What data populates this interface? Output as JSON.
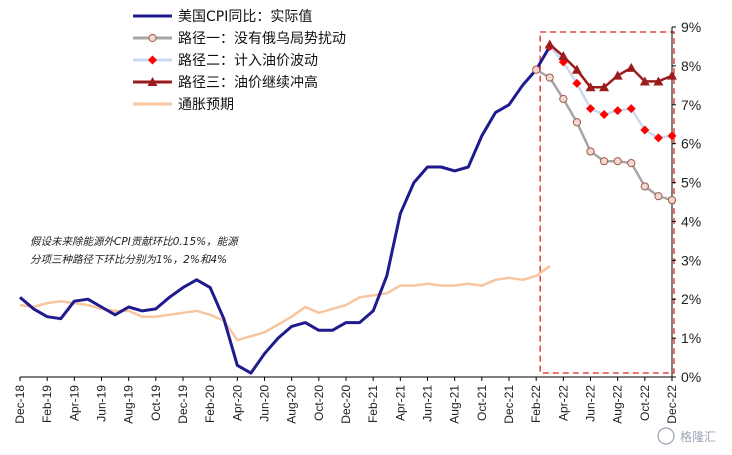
{
  "chart_data": {
    "type": "line",
    "x": [
      "Dec-18",
      "Jan-19",
      "Feb-19",
      "Mar-19",
      "Apr-19",
      "May-19",
      "Jun-19",
      "Jul-19",
      "Aug-19",
      "Sep-19",
      "Oct-19",
      "Nov-19",
      "Dec-19",
      "Jan-20",
      "Feb-20",
      "Mar-20",
      "Apr-20",
      "May-20",
      "Jun-20",
      "Jul-20",
      "Aug-20",
      "Sep-20",
      "Oct-20",
      "Nov-20",
      "Dec-20",
      "Jan-21",
      "Feb-21",
      "Mar-21",
      "Apr-21",
      "May-21",
      "Jun-21",
      "Jul-21",
      "Aug-21",
      "Sep-21",
      "Oct-21",
      "Nov-21",
      "Dec-21",
      "Jan-22",
      "Feb-22",
      "Mar-22",
      "Apr-22",
      "May-22",
      "Jun-22",
      "Jul-22",
      "Aug-22",
      "Sep-22",
      "Oct-22",
      "Nov-22",
      "Dec-22"
    ],
    "xtick_labels": [
      "Dec-18",
      "Feb-19",
      "Apr-19",
      "Jun-19",
      "Aug-19",
      "Oct-19",
      "Dec-19",
      "Feb-20",
      "Apr-20",
      "Jun-20",
      "Aug-20",
      "Oct-20",
      "Dec-20",
      "Feb-21",
      "Apr-21",
      "Jun-21",
      "Aug-21",
      "Oct-21",
      "Dec-21",
      "Feb-22",
      "Apr-22",
      "Jun-22",
      "Aug-22",
      "Oct-22",
      "Dec-22"
    ],
    "yticks": [
      "0%",
      "1%",
      "2%",
      "3%",
      "4%",
      "5%",
      "6%",
      "7%",
      "8%",
      "9%"
    ],
    "ylim": [
      0,
      9
    ],
    "series": [
      {
        "name": "美国CPI同比：实际值",
        "color": "#1f1b8f",
        "marker": "none",
        "values": [
          2.05,
          1.75,
          1.55,
          1.5,
          1.95,
          2.0,
          1.8,
          1.6,
          1.8,
          1.7,
          1.75,
          2.05,
          2.3,
          2.5,
          2.3,
          1.5,
          0.3,
          0.1,
          0.6,
          1.0,
          1.3,
          1.4,
          1.2,
          1.2,
          1.4,
          1.4,
          1.7,
          2.6,
          4.2,
          5.0,
          5.4,
          5.4,
          5.3,
          5.4,
          6.2,
          6.8,
          7.0,
          7.5,
          7.9,
          8.5,
          null,
          null,
          null,
          null,
          null,
          null,
          null,
          null,
          null
        ]
      },
      {
        "name": "路径一：没有俄乌局势扰动",
        "color": "#a6a6a6",
        "marker": "circle",
        "values": [
          null,
          null,
          null,
          null,
          null,
          null,
          null,
          null,
          null,
          null,
          null,
          null,
          null,
          null,
          null,
          null,
          null,
          null,
          null,
          null,
          null,
          null,
          null,
          null,
          null,
          null,
          null,
          null,
          null,
          null,
          null,
          null,
          null,
          null,
          null,
          null,
          null,
          null,
          7.9,
          7.7,
          7.15,
          6.55,
          5.8,
          5.55,
          5.55,
          5.5,
          4.9,
          4.65,
          4.55
        ]
      },
      {
        "name": "路径二：计入油价波动",
        "color": "#ff0000",
        "marker": "diamond",
        "values": [
          null,
          null,
          null,
          null,
          null,
          null,
          null,
          null,
          null,
          null,
          null,
          null,
          null,
          null,
          null,
          null,
          null,
          null,
          null,
          null,
          null,
          null,
          null,
          null,
          null,
          null,
          null,
          null,
          null,
          null,
          null,
          null,
          null,
          null,
          null,
          null,
          null,
          null,
          null,
          8.5,
          8.1,
          7.55,
          6.9,
          6.75,
          6.85,
          6.9,
          6.35,
          6.15,
          6.2
        ]
      },
      {
        "name": "路径三：油价继续冲高",
        "color": "#9b1c1c",
        "marker": "triangle",
        "values": [
          null,
          null,
          null,
          null,
          null,
          null,
          null,
          null,
          null,
          null,
          null,
          null,
          null,
          null,
          null,
          null,
          null,
          null,
          null,
          null,
          null,
          null,
          null,
          null,
          null,
          null,
          null,
          null,
          null,
          null,
          null,
          null,
          null,
          null,
          null,
          null,
          null,
          null,
          null,
          8.55,
          8.25,
          7.9,
          7.45,
          7.45,
          7.75,
          7.95,
          7.6,
          7.6,
          7.75
        ]
      },
      {
        "name": "通胀预期",
        "color": "#f7c59f",
        "marker": "none",
        "values": [
          1.85,
          1.8,
          1.9,
          1.95,
          1.9,
          1.85,
          1.75,
          1.7,
          1.7,
          1.55,
          1.55,
          1.6,
          1.65,
          1.7,
          1.6,
          1.45,
          0.95,
          1.05,
          1.15,
          1.35,
          1.55,
          1.8,
          1.65,
          1.75,
          1.85,
          2.05,
          2.1,
          2.15,
          2.35,
          2.35,
          2.4,
          2.35,
          2.35,
          2.4,
          2.35,
          2.5,
          2.55,
          2.5,
          2.6,
          2.85,
          null,
          null,
          null,
          null,
          null,
          null,
          null,
          null,
          null
        ]
      }
    ],
    "annotation": [
      "假设未来除能源外CPI贡献环比0.15%，能源",
      "分项三种路径下环比分别为1%，2%和4%"
    ],
    "legend_position": "top-left",
    "grid": false
  },
  "watermark": "格隆汇"
}
